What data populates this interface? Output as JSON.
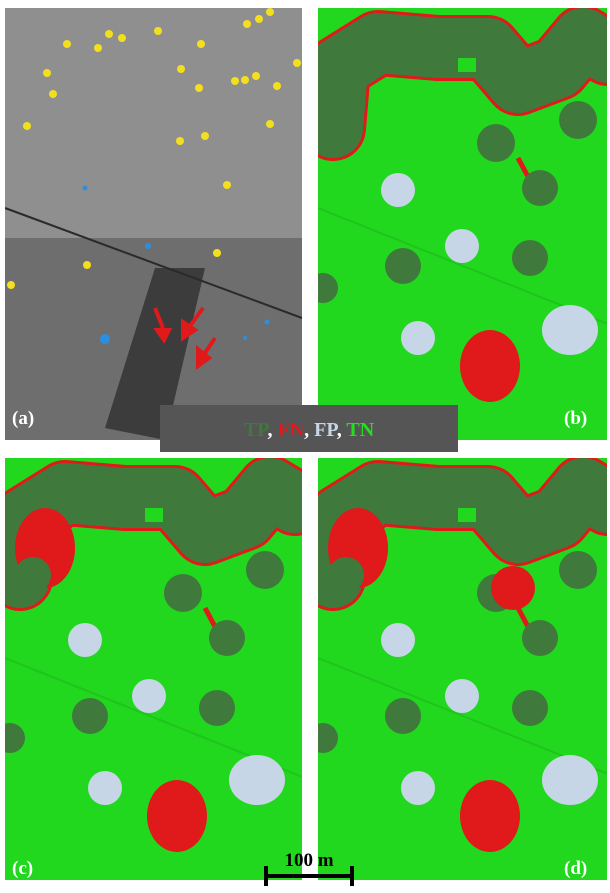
{
  "panels": [
    {
      "label": "(a)"
    },
    {
      "label": "(b)"
    },
    {
      "label": "(c)"
    },
    {
      "label": "(d)"
    }
  ],
  "legend": {
    "separator": ", ",
    "items": [
      {
        "text": "TP",
        "color": "#3f7a3c"
      },
      {
        "text": "FN",
        "color": "#e0191b"
      },
      {
        "text": "FP",
        "color": "#c6d6e6"
      },
      {
        "text": "TN",
        "color": "#22e01f"
      }
    ]
  },
  "scale_bar": {
    "label": "100 m"
  }
}
